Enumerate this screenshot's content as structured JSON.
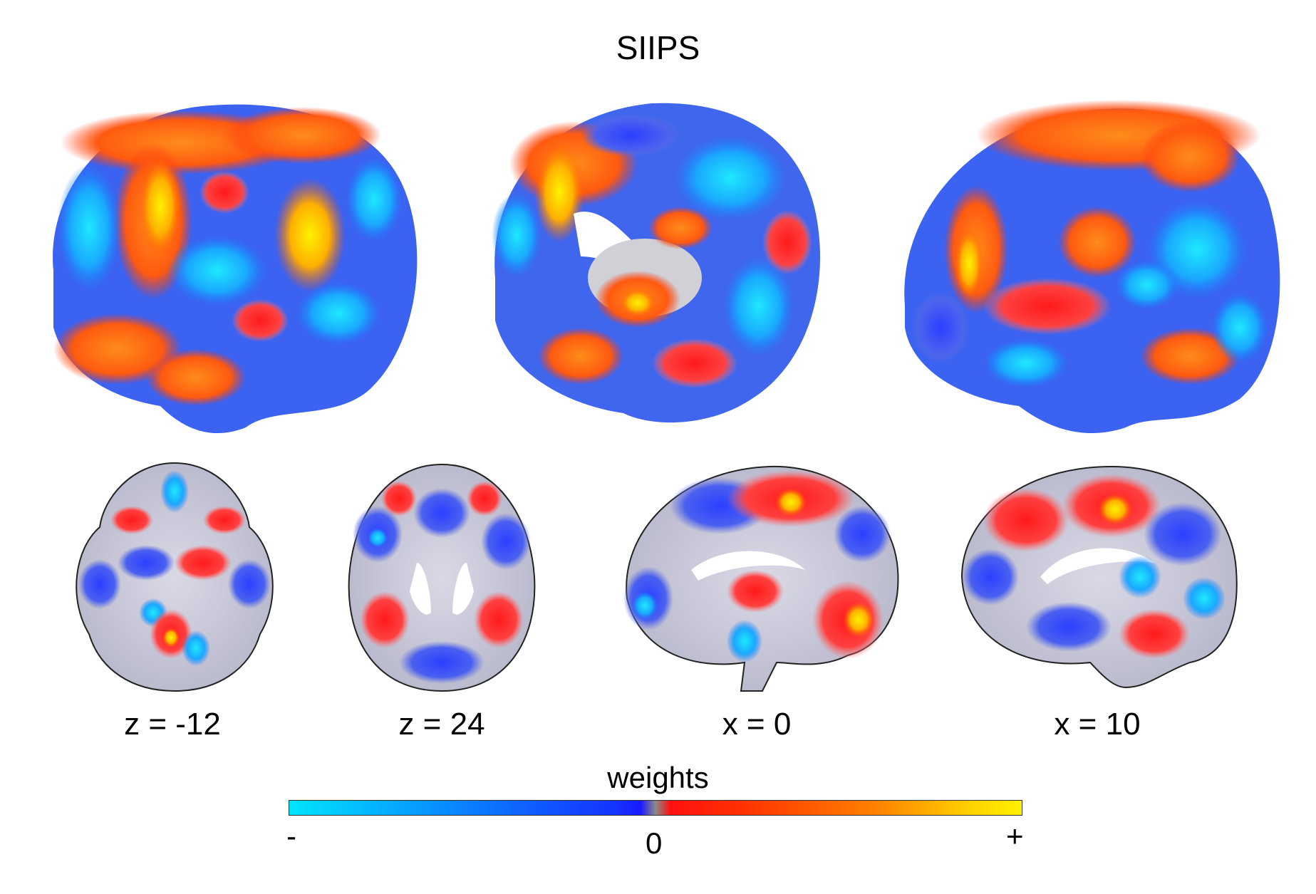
{
  "title": "SIIPS",
  "views": [
    {
      "name": "lateral-left-surface"
    },
    {
      "name": "medial-surface"
    },
    {
      "name": "lateral-right-surface"
    }
  ],
  "slices": [
    {
      "label": "z = -12"
    },
    {
      "label": "z = 24"
    },
    {
      "label": "x = 0"
    },
    {
      "label": "x = 10"
    }
  ],
  "colorbar": {
    "title": "weights",
    "min_label": "-",
    "zero_label": "0",
    "max_label": "+",
    "colors": [
      "#00e5ff",
      "#1530ff",
      "#8a8a8a",
      "#ff1010",
      "#ff8000",
      "#fff200"
    ]
  }
}
